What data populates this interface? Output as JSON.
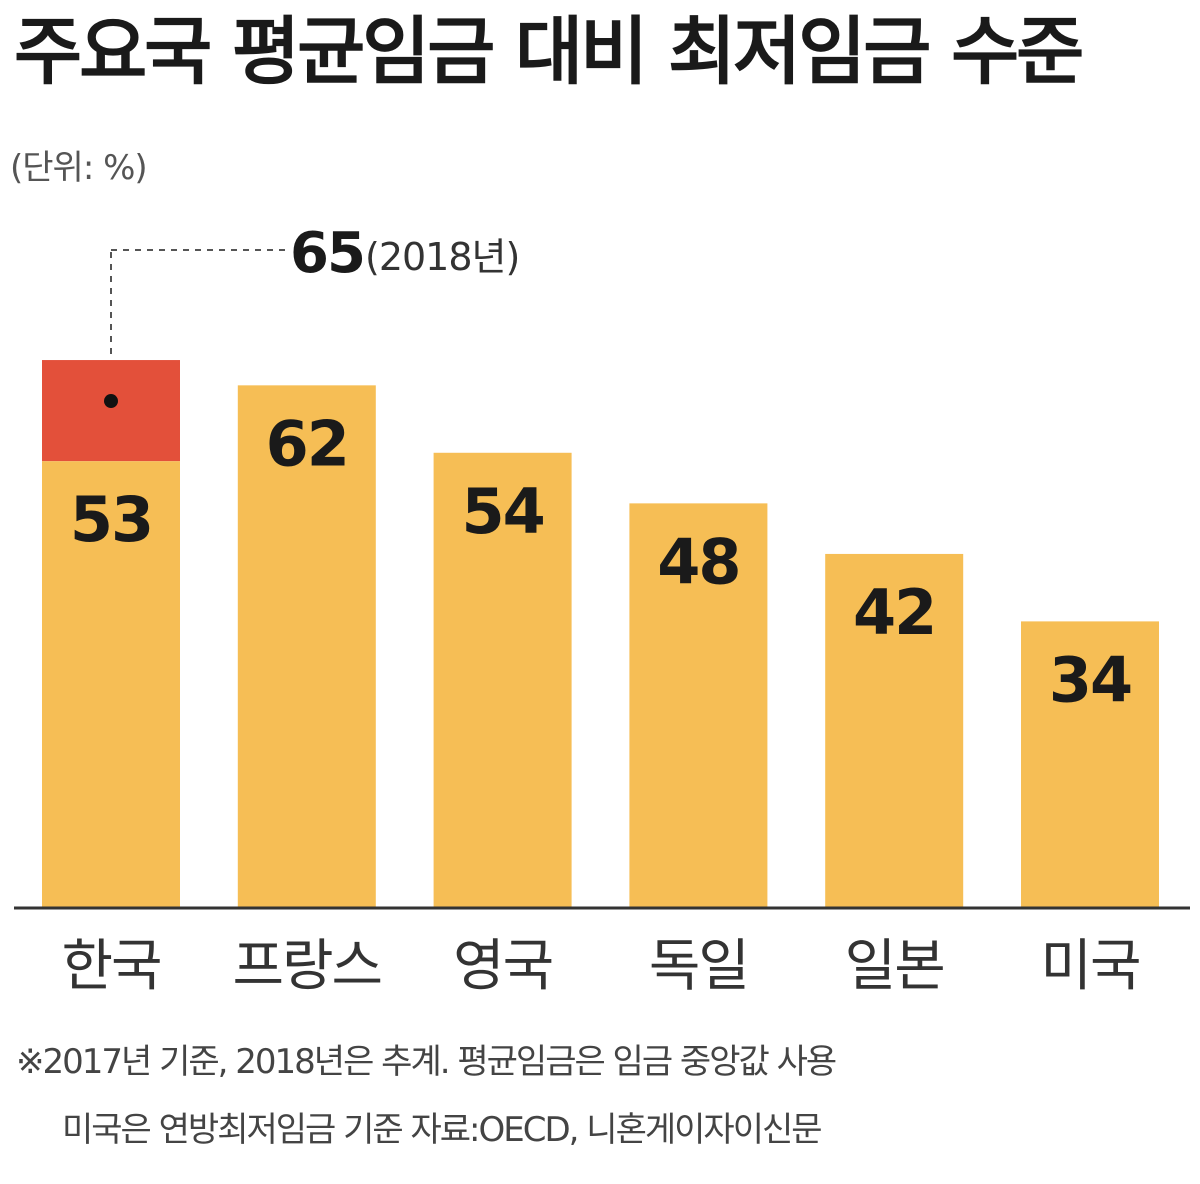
{
  "chart_data": {
    "type": "bar",
    "title": "주요국 평균임금 대비 최저임금 수준",
    "unit": "(단위: %)",
    "categories": [
      "한국",
      "프랑스",
      "영국",
      "독일",
      "일본",
      "미국"
    ],
    "values": [
      53,
      62,
      54,
      48,
      42,
      34
    ],
    "ylim": [
      0,
      70
    ],
    "grid": false,
    "highlight": {
      "category": "한국",
      "value": 65,
      "value_label": "65",
      "year_label": "(2018년)"
    },
    "colors": {
      "bar": "#F6BE55",
      "highlight": "#E3503A",
      "text": "#1a1a1a",
      "axis": "#333333"
    }
  },
  "notes": [
    "※2017년 기준, 2018년은 추계. 평균임금은 임금 중앙값 사용",
    "미국은 연방최저임금 기준   자료:OECD, 니혼게이자이신문"
  ]
}
